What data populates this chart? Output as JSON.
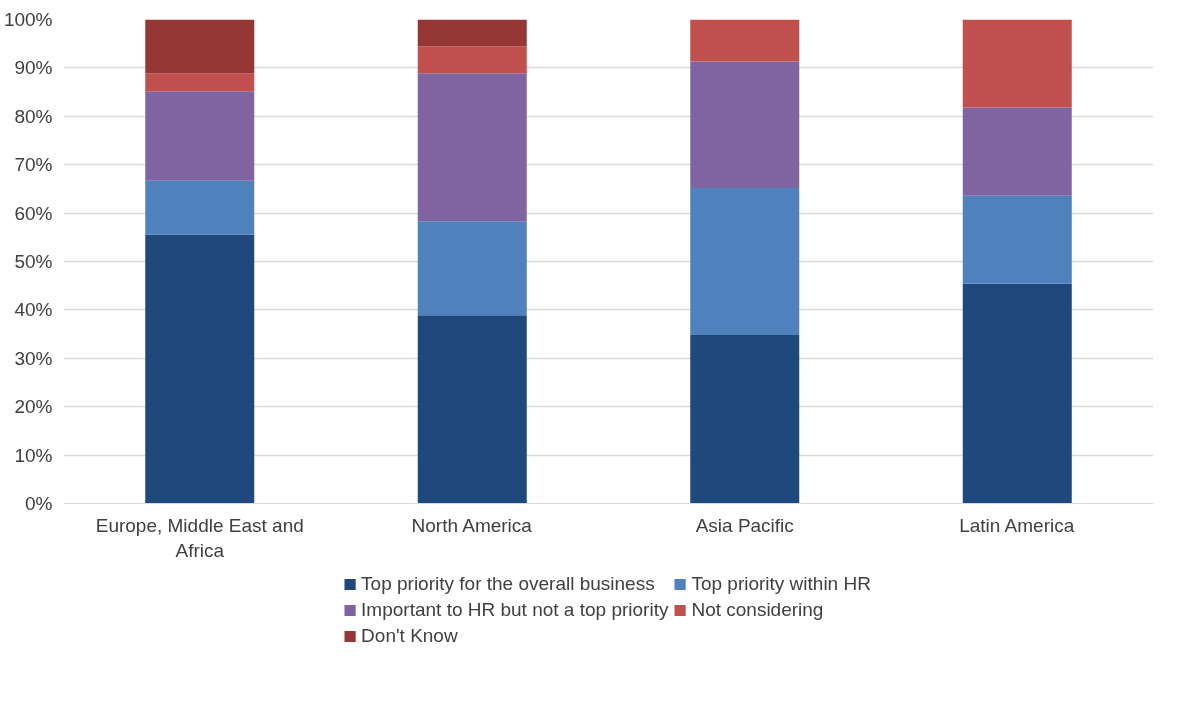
{
  "chart_data": {
    "type": "bar",
    "stacked": true,
    "categories": [
      "Europe, Middle East and Africa",
      "North America",
      "Asia Pacific",
      "Latin America"
    ],
    "series": [
      {
        "name": "Top priority for the overall business",
        "color": "#1f497d",
        "values": [
          55.6,
          38.9,
          34.8,
          45.4
        ]
      },
      {
        "name": "Top priority within HR",
        "color": "#4f81bd",
        "values": [
          11.1,
          19.4,
          30.4,
          18.2
        ]
      },
      {
        "name": "Important to HR but not a top priority",
        "color": "#8064a2",
        "values": [
          18.5,
          30.6,
          26.1,
          18.2
        ]
      },
      {
        "name": "Not considering",
        "color": "#c0504d",
        "values": [
          3.7,
          5.5,
          8.7,
          18.2
        ]
      },
      {
        "name": "Don't Know",
        "color": "#953735",
        "values": [
          11.1,
          5.6,
          0,
          0
        ]
      }
    ],
    "ylim": [
      0,
      100
    ],
    "yticks": [
      {
        "value": 0,
        "label": "0%"
      },
      {
        "value": 10,
        "label": "10%"
      },
      {
        "value": 20,
        "label": "20%"
      },
      {
        "value": 30,
        "label": "30%"
      },
      {
        "value": 40,
        "label": "40%"
      },
      {
        "value": 50,
        "label": "50%"
      },
      {
        "value": 60,
        "label": "60%"
      },
      {
        "value": 70,
        "label": "70%"
      },
      {
        "value": 80,
        "label": "80%"
      },
      {
        "value": 90,
        "label": "90%"
      },
      {
        "value": 100,
        "label": "100%"
      }
    ],
    "grid": "y",
    "legend": "bottom"
  }
}
